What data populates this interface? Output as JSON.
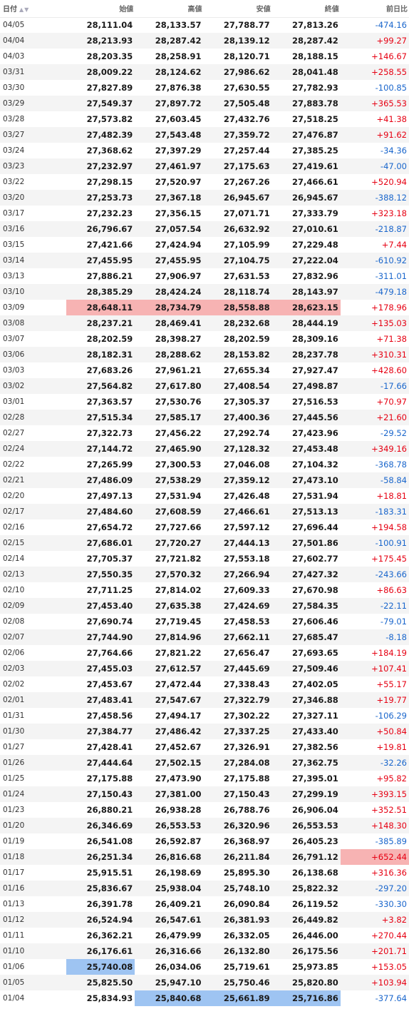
{
  "headers": {
    "date": "日付",
    "open": "始値",
    "high": "高値",
    "low": "安値",
    "close": "終値",
    "change": "前日比"
  },
  "sort_icon": "▲▼",
  "colors": {
    "positive": "#e60012",
    "negative": "#1a66cc",
    "highlight_max": "#f7b3b3",
    "highlight_min": "#9ec4f2"
  },
  "rows": [
    {
      "date": "04/05",
      "open": "28,111.04",
      "high": "28,133.57",
      "low": "27,788.77",
      "close": "27,813.26",
      "change": "-474.16"
    },
    {
      "date": "04/04",
      "open": "28,213.93",
      "high": "28,287.42",
      "low": "28,139.12",
      "close": "28,287.42",
      "change": "+99.27"
    },
    {
      "date": "04/03",
      "open": "28,203.35",
      "high": "28,258.91",
      "low": "28,120.71",
      "close": "28,188.15",
      "change": "+146.67"
    },
    {
      "date": "03/31",
      "open": "28,009.22",
      "high": "28,124.62",
      "low": "27,986.62",
      "close": "28,041.48",
      "change": "+258.55"
    },
    {
      "date": "03/30",
      "open": "27,827.89",
      "high": "27,876.38",
      "low": "27,630.55",
      "close": "27,782.93",
      "change": "-100.85"
    },
    {
      "date": "03/29",
      "open": "27,549.37",
      "high": "27,897.72",
      "low": "27,505.48",
      "close": "27,883.78",
      "change": "+365.53"
    },
    {
      "date": "03/28",
      "open": "27,573.82",
      "high": "27,603.45",
      "low": "27,432.76",
      "close": "27,518.25",
      "change": "+41.38"
    },
    {
      "date": "03/27",
      "open": "27,482.39",
      "high": "27,543.48",
      "low": "27,359.72",
      "close": "27,476.87",
      "change": "+91.62"
    },
    {
      "date": "03/24",
      "open": "27,368.62",
      "high": "27,397.29",
      "low": "27,257.44",
      "close": "27,385.25",
      "change": "-34.36"
    },
    {
      "date": "03/23",
      "open": "27,232.97",
      "high": "27,461.97",
      "low": "27,175.63",
      "close": "27,419.61",
      "change": "-47.00"
    },
    {
      "date": "03/22",
      "open": "27,298.15",
      "high": "27,520.97",
      "low": "27,267.26",
      "close": "27,466.61",
      "change": "+520.94"
    },
    {
      "date": "03/20",
      "open": "27,253.73",
      "high": "27,367.18",
      "low": "26,945.67",
      "close": "26,945.67",
      "change": "-388.12"
    },
    {
      "date": "03/17",
      "open": "27,232.23",
      "high": "27,356.15",
      "low": "27,071.71",
      "close": "27,333.79",
      "change": "+323.18"
    },
    {
      "date": "03/16",
      "open": "26,796.67",
      "high": "27,057.54",
      "low": "26,632.92",
      "close": "27,010.61",
      "change": "-218.87"
    },
    {
      "date": "03/15",
      "open": "27,421.66",
      "high": "27,424.94",
      "low": "27,105.99",
      "close": "27,229.48",
      "change": "+7.44"
    },
    {
      "date": "03/14",
      "open": "27,455.95",
      "high": "27,455.95",
      "low": "27,104.75",
      "close": "27,222.04",
      "change": "-610.92"
    },
    {
      "date": "03/13",
      "open": "27,886.21",
      "high": "27,906.97",
      "low": "27,631.53",
      "close": "27,832.96",
      "change": "-311.01"
    },
    {
      "date": "03/10",
      "open": "28,385.29",
      "high": "28,424.24",
      "low": "28,118.74",
      "close": "28,143.97",
      "change": "-479.18"
    },
    {
      "date": "03/09",
      "open": "28,648.11",
      "high": "28,734.79",
      "low": "28,558.88",
      "close": "28,623.15",
      "change": "+178.96"
    },
    {
      "date": "03/08",
      "open": "28,237.21",
      "high": "28,469.41",
      "low": "28,232.68",
      "close": "28,444.19",
      "change": "+135.03"
    },
    {
      "date": "03/07",
      "open": "28,202.59",
      "high": "28,398.27",
      "low": "28,202.59",
      "close": "28,309.16",
      "change": "+71.38"
    },
    {
      "date": "03/06",
      "open": "28,182.31",
      "high": "28,288.62",
      "low": "28,153.82",
      "close": "28,237.78",
      "change": "+310.31"
    },
    {
      "date": "03/03",
      "open": "27,683.26",
      "high": "27,961.21",
      "low": "27,655.34",
      "close": "27,927.47",
      "change": "+428.60"
    },
    {
      "date": "03/02",
      "open": "27,564.82",
      "high": "27,617.80",
      "low": "27,408.54",
      "close": "27,498.87",
      "change": "-17.66"
    },
    {
      "date": "03/01",
      "open": "27,363.57",
      "high": "27,530.76",
      "low": "27,305.37",
      "close": "27,516.53",
      "change": "+70.97"
    },
    {
      "date": "02/28",
      "open": "27,515.34",
      "high": "27,585.17",
      "low": "27,400.36",
      "close": "27,445.56",
      "change": "+21.60"
    },
    {
      "date": "02/27",
      "open": "27,322.73",
      "high": "27,456.22",
      "low": "27,292.74",
      "close": "27,423.96",
      "change": "-29.52"
    },
    {
      "date": "02/24",
      "open": "27,144.72",
      "high": "27,465.90",
      "low": "27,128.32",
      "close": "27,453.48",
      "change": "+349.16"
    },
    {
      "date": "02/22",
      "open": "27,265.99",
      "high": "27,300.53",
      "low": "27,046.08",
      "close": "27,104.32",
      "change": "-368.78"
    },
    {
      "date": "02/21",
      "open": "27,486.09",
      "high": "27,538.29",
      "low": "27,359.12",
      "close": "27,473.10",
      "change": "-58.84"
    },
    {
      "date": "02/20",
      "open": "27,497.13",
      "high": "27,531.94",
      "low": "27,426.48",
      "close": "27,531.94",
      "change": "+18.81"
    },
    {
      "date": "02/17",
      "open": "27,484.60",
      "high": "27,608.59",
      "low": "27,466.61",
      "close": "27,513.13",
      "change": "-183.31"
    },
    {
      "date": "02/16",
      "open": "27,654.72",
      "high": "27,727.66",
      "low": "27,597.12",
      "close": "27,696.44",
      "change": "+194.58"
    },
    {
      "date": "02/15",
      "open": "27,686.01",
      "high": "27,720.27",
      "low": "27,444.13",
      "close": "27,501.86",
      "change": "-100.91"
    },
    {
      "date": "02/14",
      "open": "27,705.37",
      "high": "27,721.82",
      "low": "27,553.18",
      "close": "27,602.77",
      "change": "+175.45"
    },
    {
      "date": "02/13",
      "open": "27,550.35",
      "high": "27,570.32",
      "low": "27,266.94",
      "close": "27,427.32",
      "change": "-243.66"
    },
    {
      "date": "02/10",
      "open": "27,711.25",
      "high": "27,814.02",
      "low": "27,609.33",
      "close": "27,670.98",
      "change": "+86.63"
    },
    {
      "date": "02/09",
      "open": "27,453.40",
      "high": "27,635.38",
      "low": "27,424.69",
      "close": "27,584.35",
      "change": "-22.11"
    },
    {
      "date": "02/08",
      "open": "27,690.74",
      "high": "27,719.45",
      "low": "27,458.53",
      "close": "27,606.46",
      "change": "-79.01"
    },
    {
      "date": "02/07",
      "open": "27,744.90",
      "high": "27,814.96",
      "low": "27,662.11",
      "close": "27,685.47",
      "change": "-8.18"
    },
    {
      "date": "02/06",
      "open": "27,764.66",
      "high": "27,821.22",
      "low": "27,656.47",
      "close": "27,693.65",
      "change": "+184.19"
    },
    {
      "date": "02/03",
      "open": "27,455.03",
      "high": "27,612.57",
      "low": "27,445.69",
      "close": "27,509.46",
      "change": "+107.41"
    },
    {
      "date": "02/02",
      "open": "27,453.67",
      "high": "27,472.44",
      "low": "27,338.43",
      "close": "27,402.05",
      "change": "+55.17"
    },
    {
      "date": "02/01",
      "open": "27,483.41",
      "high": "27,547.67",
      "low": "27,322.79",
      "close": "27,346.88",
      "change": "+19.77"
    },
    {
      "date": "01/31",
      "open": "27,458.56",
      "high": "27,494.17",
      "low": "27,302.22",
      "close": "27,327.11",
      "change": "-106.29"
    },
    {
      "date": "01/30",
      "open": "27,384.77",
      "high": "27,486.42",
      "low": "27,337.25",
      "close": "27,433.40",
      "change": "+50.84"
    },
    {
      "date": "01/27",
      "open": "27,428.41",
      "high": "27,452.67",
      "low": "27,326.91",
      "close": "27,382.56",
      "change": "+19.81"
    },
    {
      "date": "01/26",
      "open": "27,444.64",
      "high": "27,502.15",
      "low": "27,284.08",
      "close": "27,362.75",
      "change": "-32.26"
    },
    {
      "date": "01/25",
      "open": "27,175.88",
      "high": "27,473.90",
      "low": "27,175.88",
      "close": "27,395.01",
      "change": "+95.82"
    },
    {
      "date": "01/24",
      "open": "27,150.43",
      "high": "27,381.00",
      "low": "27,150.43",
      "close": "27,299.19",
      "change": "+393.15"
    },
    {
      "date": "01/23",
      "open": "26,880.21",
      "high": "26,938.28",
      "low": "26,788.76",
      "close": "26,906.04",
      "change": "+352.51"
    },
    {
      "date": "01/20",
      "open": "26,346.69",
      "high": "26,553.53",
      "low": "26,320.96",
      "close": "26,553.53",
      "change": "+148.30"
    },
    {
      "date": "01/19",
      "open": "26,541.08",
      "high": "26,592.87",
      "low": "26,368.97",
      "close": "26,405.23",
      "change": "-385.89"
    },
    {
      "date": "01/18",
      "open": "26,251.34",
      "high": "26,816.68",
      "low": "26,211.84",
      "close": "26,791.12",
      "change": "+652.44"
    },
    {
      "date": "01/17",
      "open": "25,915.51",
      "high": "26,198.69",
      "low": "25,895.30",
      "close": "26,138.68",
      "change": "+316.36"
    },
    {
      "date": "01/16",
      "open": "25,836.67",
      "high": "25,938.04",
      "low": "25,748.10",
      "close": "25,822.32",
      "change": "-297.20"
    },
    {
      "date": "01/13",
      "open": "26,391.78",
      "high": "26,409.21",
      "low": "26,090.84",
      "close": "26,119.52",
      "change": "-330.30"
    },
    {
      "date": "01/12",
      "open": "26,524.94",
      "high": "26,547.61",
      "low": "26,381.93",
      "close": "26,449.82",
      "change": "+3.82"
    },
    {
      "date": "01/11",
      "open": "26,362.21",
      "high": "26,479.99",
      "low": "26,332.05",
      "close": "26,446.00",
      "change": "+270.44"
    },
    {
      "date": "01/10",
      "open": "26,176.61",
      "high": "26,316.66",
      "low": "26,132.80",
      "close": "26,175.56",
      "change": "+201.71"
    },
    {
      "date": "01/06",
      "open": "25,740.08",
      "high": "26,034.06",
      "low": "25,719.61",
      "close": "25,973.85",
      "change": "+153.05"
    },
    {
      "date": "01/05",
      "open": "25,825.50",
      "high": "25,947.10",
      "low": "25,750.46",
      "close": "25,820.80",
      "change": "+103.94"
    },
    {
      "date": "01/04",
      "open": "25,834.93",
      "high": "25,840.68",
      "low": "25,661.89",
      "close": "25,716.86",
      "change": "-377.64"
    }
  ],
  "highlights": {
    "max": [
      {
        "row": 18,
        "col": "open"
      },
      {
        "row": 18,
        "col": "high"
      },
      {
        "row": 18,
        "col": "low"
      },
      {
        "row": 18,
        "col": "close"
      },
      {
        "row": 53,
        "col": "change"
      }
    ],
    "min": [
      {
        "row": 60,
        "col": "open"
      },
      {
        "row": 62,
        "col": "high"
      },
      {
        "row": 62,
        "col": "low"
      },
      {
        "row": 62,
        "col": "close"
      }
    ]
  }
}
